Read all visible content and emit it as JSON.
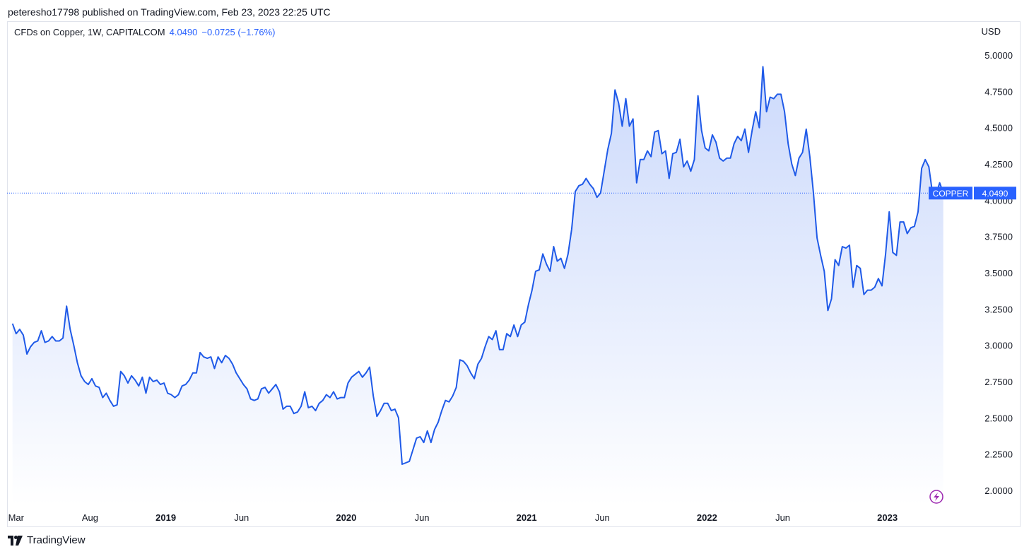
{
  "header": {
    "published_line": "peteresho17798 published on TradingView.com, Feb 23, 2023 22:25 UTC"
  },
  "legend": {
    "symbol_text": "CFDs on Copper, 1W, CAPITALCOM",
    "last_value": "4.0490",
    "change_text": "−0.0725 (−1.76%)"
  },
  "footer": {
    "brand": "TradingView",
    "logo_icon": "tradingview-logo-icon"
  },
  "colors": {
    "line": "#1f5ae8",
    "fill_top": "#c7d6fb",
    "fill_bottom": "#ffffff",
    "badge": "#2962ff",
    "accent": "#2962ff",
    "lightning": "#9c27b0"
  },
  "chart_data": {
    "type": "area",
    "title": "CFDs on Copper, 1W, CAPITALCOM",
    "currency": "USD",
    "ylim": [
      1.95,
      5.08
    ],
    "y_ticks": [
      "5.0000",
      "4.7500",
      "4.5000",
      "4.2500",
      "4.0000",
      "3.7500",
      "3.5000",
      "3.2500",
      "3.0000",
      "2.7500",
      "2.5000",
      "2.2500",
      "2.0000"
    ],
    "x_ticks": [
      {
        "label": "Mar",
        "bold": false,
        "t": 2018.17
      },
      {
        "label": "Aug",
        "bold": false,
        "t": 2018.58
      },
      {
        "label": "2019",
        "bold": true,
        "t": 2019.0
      },
      {
        "label": "Jun",
        "bold": false,
        "t": 2019.42
      },
      {
        "label": "2020",
        "bold": true,
        "t": 2020.0
      },
      {
        "label": "Jun",
        "bold": false,
        "t": 2020.42
      },
      {
        "label": "2021",
        "bold": true,
        "t": 2021.0
      },
      {
        "label": "Jun",
        "bold": false,
        "t": 2021.42
      },
      {
        "label": "2022",
        "bold": true,
        "t": 2022.0
      },
      {
        "label": "Jun",
        "bold": false,
        "t": 2022.42
      },
      {
        "label": "2023",
        "bold": true,
        "t": 2023.0
      }
    ],
    "last_price_label": "COPPER",
    "last_price_value": "4.0490",
    "grid": false,
    "series": [
      {
        "points": [
          [
            2018.15,
            3.15
          ],
          [
            2018.17,
            3.08
          ],
          [
            2018.19,
            3.11
          ],
          [
            2018.21,
            3.07
          ],
          [
            2018.23,
            2.94
          ],
          [
            2018.25,
            2.99
          ],
          [
            2018.27,
            3.02
          ],
          [
            2018.29,
            3.03
          ],
          [
            2018.31,
            3.1
          ],
          [
            2018.33,
            3.02
          ],
          [
            2018.35,
            3.03
          ],
          [
            2018.37,
            3.06
          ],
          [
            2018.39,
            3.03
          ],
          [
            2018.41,
            3.03
          ],
          [
            2018.43,
            3.05
          ],
          [
            2018.45,
            3.27
          ],
          [
            2018.47,
            3.11
          ],
          [
            2018.49,
            3.0
          ],
          [
            2018.51,
            2.88
          ],
          [
            2018.53,
            2.79
          ],
          [
            2018.55,
            2.75
          ],
          [
            2018.57,
            2.73
          ],
          [
            2018.59,
            2.77
          ],
          [
            2018.61,
            2.72
          ],
          [
            2018.63,
            2.71
          ],
          [
            2018.65,
            2.64
          ],
          [
            2018.67,
            2.67
          ],
          [
            2018.69,
            2.62
          ],
          [
            2018.71,
            2.58
          ],
          [
            2018.73,
            2.59
          ],
          [
            2018.75,
            2.82
          ],
          [
            2018.77,
            2.79
          ],
          [
            2018.79,
            2.74
          ],
          [
            2018.81,
            2.79
          ],
          [
            2018.83,
            2.76
          ],
          [
            2018.85,
            2.72
          ],
          [
            2018.87,
            2.78
          ],
          [
            2018.89,
            2.67
          ],
          [
            2018.91,
            2.78
          ],
          [
            2018.93,
            2.75
          ],
          [
            2018.95,
            2.76
          ],
          [
            2018.97,
            2.73
          ],
          [
            2018.99,
            2.74
          ],
          [
            2019.01,
            2.67
          ],
          [
            2019.03,
            2.66
          ],
          [
            2019.05,
            2.64
          ],
          [
            2019.07,
            2.66
          ],
          [
            2019.09,
            2.72
          ],
          [
            2019.11,
            2.73
          ],
          [
            2019.13,
            2.76
          ],
          [
            2019.15,
            2.81
          ],
          [
            2019.17,
            2.81
          ],
          [
            2019.19,
            2.95
          ],
          [
            2019.21,
            2.92
          ],
          [
            2019.23,
            2.91
          ],
          [
            2019.25,
            2.92
          ],
          [
            2019.27,
            2.84
          ],
          [
            2019.29,
            2.92
          ],
          [
            2019.31,
            2.88
          ],
          [
            2019.33,
            2.93
          ],
          [
            2019.35,
            2.91
          ],
          [
            2019.37,
            2.87
          ],
          [
            2019.39,
            2.81
          ],
          [
            2019.41,
            2.77
          ],
          [
            2019.43,
            2.73
          ],
          [
            2019.45,
            2.7
          ],
          [
            2019.47,
            2.63
          ],
          [
            2019.49,
            2.62
          ],
          [
            2019.51,
            2.63
          ],
          [
            2019.53,
            2.7
          ],
          [
            2019.55,
            2.71
          ],
          [
            2019.57,
            2.67
          ],
          [
            2019.59,
            2.7
          ],
          [
            2019.61,
            2.73
          ],
          [
            2019.63,
            2.68
          ],
          [
            2019.65,
            2.56
          ],
          [
            2019.67,
            2.58
          ],
          [
            2019.69,
            2.58
          ],
          [
            2019.71,
            2.53
          ],
          [
            2019.73,
            2.54
          ],
          [
            2019.75,
            2.58
          ],
          [
            2019.77,
            2.68
          ],
          [
            2019.79,
            2.57
          ],
          [
            2019.81,
            2.58
          ],
          [
            2019.83,
            2.55
          ],
          [
            2019.85,
            2.6
          ],
          [
            2019.87,
            2.62
          ],
          [
            2019.89,
            2.66
          ],
          [
            2019.91,
            2.64
          ],
          [
            2019.93,
            2.68
          ],
          [
            2019.95,
            2.63
          ],
          [
            2019.97,
            2.64
          ],
          [
            2019.99,
            2.64
          ],
          [
            2020.01,
            2.74
          ],
          [
            2020.03,
            2.78
          ],
          [
            2020.05,
            2.8
          ],
          [
            2020.07,
            2.82
          ],
          [
            2020.09,
            2.78
          ],
          [
            2020.11,
            2.81
          ],
          [
            2020.13,
            2.85
          ],
          [
            2020.15,
            2.65
          ],
          [
            2020.17,
            2.51
          ],
          [
            2020.19,
            2.55
          ],
          [
            2020.21,
            2.6
          ],
          [
            2020.23,
            2.6
          ],
          [
            2020.25,
            2.55
          ],
          [
            2020.27,
            2.56
          ],
          [
            2020.29,
            2.5
          ],
          [
            2020.31,
            2.18
          ],
          [
            2020.33,
            2.19
          ],
          [
            2020.35,
            2.2
          ],
          [
            2020.37,
            2.28
          ],
          [
            2020.39,
            2.36
          ],
          [
            2020.41,
            2.37
          ],
          [
            2020.43,
            2.33
          ],
          [
            2020.45,
            2.41
          ],
          [
            2020.47,
            2.33
          ],
          [
            2020.49,
            2.42
          ],
          [
            2020.51,
            2.47
          ],
          [
            2020.53,
            2.55
          ],
          [
            2020.55,
            2.62
          ],
          [
            2020.57,
            2.61
          ],
          [
            2020.59,
            2.65
          ],
          [
            2020.61,
            2.71
          ],
          [
            2020.63,
            2.9
          ],
          [
            2020.65,
            2.89
          ],
          [
            2020.67,
            2.86
          ],
          [
            2020.69,
            2.81
          ],
          [
            2020.71,
            2.77
          ],
          [
            2020.73,
            2.87
          ],
          [
            2020.75,
            2.91
          ],
          [
            2020.77,
            2.99
          ],
          [
            2020.79,
            3.06
          ],
          [
            2020.81,
            3.04
          ],
          [
            2020.83,
            3.1
          ],
          [
            2020.85,
            2.97
          ],
          [
            2020.87,
            2.97
          ],
          [
            2020.89,
            3.08
          ],
          [
            2020.91,
            3.06
          ],
          [
            2020.93,
            3.14
          ],
          [
            2020.95,
            3.06
          ],
          [
            2020.97,
            3.14
          ],
          [
            2020.99,
            3.16
          ],
          [
            2021.01,
            3.28
          ],
          [
            2021.03,
            3.38
          ],
          [
            2021.05,
            3.51
          ],
          [
            2021.07,
            3.52
          ],
          [
            2021.09,
            3.63
          ],
          [
            2021.11,
            3.56
          ],
          [
            2021.13,
            3.51
          ],
          [
            2021.15,
            3.68
          ],
          [
            2021.17,
            3.58
          ],
          [
            2021.19,
            3.6
          ],
          [
            2021.21,
            3.53
          ],
          [
            2021.23,
            3.63
          ],
          [
            2021.25,
            3.8
          ],
          [
            2021.27,
            4.06
          ],
          [
            2021.29,
            4.1
          ],
          [
            2021.31,
            4.11
          ],
          [
            2021.33,
            4.15
          ],
          [
            2021.35,
            4.11
          ],
          [
            2021.37,
            4.08
          ],
          [
            2021.39,
            4.02
          ],
          [
            2021.41,
            4.05
          ],
          [
            2021.43,
            4.2
          ],
          [
            2021.45,
            4.35
          ],
          [
            2021.47,
            4.46
          ],
          [
            2021.49,
            4.76
          ],
          [
            2021.51,
            4.67
          ],
          [
            2021.53,
            4.51
          ],
          [
            2021.55,
            4.7
          ],
          [
            2021.57,
            4.51
          ],
          [
            2021.59,
            4.56
          ],
          [
            2021.61,
            4.12
          ],
          [
            2021.63,
            4.28
          ],
          [
            2021.65,
            4.28
          ],
          [
            2021.67,
            4.34
          ],
          [
            2021.69,
            4.3
          ],
          [
            2021.71,
            4.47
          ],
          [
            2021.73,
            4.48
          ],
          [
            2021.75,
            4.32
          ],
          [
            2021.77,
            4.34
          ],
          [
            2021.79,
            4.15
          ],
          [
            2021.81,
            4.32
          ],
          [
            2021.83,
            4.33
          ],
          [
            2021.85,
            4.42
          ],
          [
            2021.87,
            4.23
          ],
          [
            2021.89,
            4.27
          ],
          [
            2021.91,
            4.2
          ],
          [
            2021.93,
            4.28
          ],
          [
            2021.95,
            4.72
          ],
          [
            2021.97,
            4.48
          ],
          [
            2021.99,
            4.36
          ],
          [
            2022.01,
            4.34
          ],
          [
            2022.03,
            4.45
          ],
          [
            2022.05,
            4.4
          ],
          [
            2022.07,
            4.29
          ],
          [
            2022.09,
            4.27
          ],
          [
            2022.11,
            4.29
          ],
          [
            2022.13,
            4.29
          ],
          [
            2022.15,
            4.39
          ],
          [
            2022.17,
            4.44
          ],
          [
            2022.19,
            4.41
          ],
          [
            2022.21,
            4.49
          ],
          [
            2022.23,
            4.33
          ],
          [
            2022.25,
            4.48
          ],
          [
            2022.27,
            4.61
          ],
          [
            2022.29,
            4.5
          ],
          [
            2022.31,
            4.92
          ],
          [
            2022.33,
            4.61
          ],
          [
            2022.35,
            4.71
          ],
          [
            2022.37,
            4.7
          ],
          [
            2022.39,
            4.73
          ],
          [
            2022.41,
            4.73
          ],
          [
            2022.43,
            4.61
          ],
          [
            2022.45,
            4.39
          ],
          [
            2022.47,
            4.25
          ],
          [
            2022.49,
            4.17
          ],
          [
            2022.51,
            4.29
          ],
          [
            2022.53,
            4.33
          ],
          [
            2022.55,
            4.49
          ],
          [
            2022.57,
            4.3
          ],
          [
            2022.59,
            4.05
          ],
          [
            2022.61,
            3.74
          ],
          [
            2022.63,
            3.62
          ],
          [
            2022.65,
            3.51
          ],
          [
            2022.67,
            3.24
          ],
          [
            2022.69,
            3.32
          ],
          [
            2022.71,
            3.59
          ],
          [
            2022.73,
            3.55
          ],
          [
            2022.75,
            3.68
          ],
          [
            2022.77,
            3.67
          ],
          [
            2022.79,
            3.69
          ],
          [
            2022.81,
            3.4
          ],
          [
            2022.83,
            3.55
          ],
          [
            2022.85,
            3.53
          ],
          [
            2022.87,
            3.35
          ],
          [
            2022.89,
            3.38
          ],
          [
            2022.91,
            3.38
          ],
          [
            2022.93,
            3.4
          ],
          [
            2022.95,
            3.46
          ],
          [
            2022.97,
            3.41
          ],
          [
            2022.99,
            3.63
          ],
          [
            2023.01,
            3.92
          ],
          [
            2023.03,
            3.64
          ],
          [
            2023.05,
            3.62
          ],
          [
            2023.07,
            3.85
          ],
          [
            2023.09,
            3.85
          ],
          [
            2023.11,
            3.77
          ],
          [
            2023.13,
            3.81
          ],
          [
            2023.15,
            3.82
          ],
          [
            2023.17,
            3.92
          ],
          [
            2023.19,
            4.22
          ],
          [
            2023.21,
            4.28
          ],
          [
            2023.23,
            4.23
          ],
          [
            2023.25,
            4.05
          ],
          [
            2023.27,
            4.04
          ],
          [
            2023.29,
            4.12
          ],
          [
            2023.31,
            4.05
          ]
        ]
      }
    ]
  }
}
